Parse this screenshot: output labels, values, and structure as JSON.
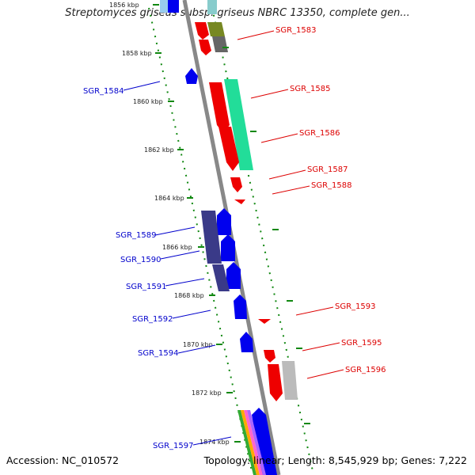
{
  "title": "Streptomyces griseus subsp. griseus NBRC 13350, complete gen...",
  "footer": {
    "accession": "Accession: NC_010572",
    "summary": "Topology: linear; Length: 8,545,929 bp; Genes: 7,222"
  },
  "colors": {
    "forward_label": "#0000cc",
    "reverse_label": "#dd0000",
    "scale_tick": "#118811",
    "backbone": "#888888"
  },
  "scale_ticks": [
    "1856 kbp",
    "1858 kbp",
    "1860 kbp",
    "1862 kbp",
    "1864 kbp",
    "1866 kbp",
    "1868 kbp",
    "1870 kbp",
    "1872 kbp",
    "1874 kbp"
  ],
  "genes_left": [
    "SGR_1584",
    "SGR_1589",
    "SGR_1590",
    "SGR_1591",
    "SGR_1592",
    "SGR_1594",
    "SGR_1597"
  ],
  "genes_right": [
    "SGR_1583",
    "SGR_1585",
    "SGR_1586",
    "SGR_1587",
    "SGR_1588",
    "SGR_1593",
    "SGR_1595",
    "SGR_1596"
  ]
}
